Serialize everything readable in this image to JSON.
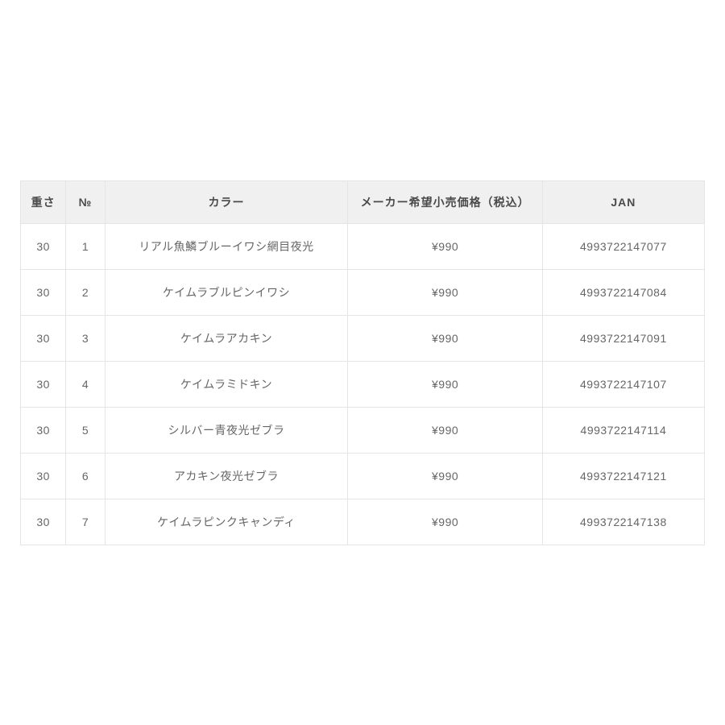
{
  "table": {
    "columns": [
      {
        "key": "weight",
        "label": "重さ",
        "class": "col-weight"
      },
      {
        "key": "no",
        "label": "№",
        "class": "col-no"
      },
      {
        "key": "color",
        "label": "カラー",
        "class": "col-color"
      },
      {
        "key": "price",
        "label": "メーカー希望小売価格（税込）",
        "class": "col-price"
      },
      {
        "key": "jan",
        "label": "JAN",
        "class": "col-jan"
      }
    ],
    "rows": [
      {
        "weight": "30",
        "no": "1",
        "color": "リアル魚鱗ブルーイワシ網目夜光",
        "price": "¥990",
        "jan": "4993722147077"
      },
      {
        "weight": "30",
        "no": "2",
        "color": "ケイムラブルピンイワシ",
        "price": "¥990",
        "jan": "4993722147084"
      },
      {
        "weight": "30",
        "no": "3",
        "color": "ケイムラアカキン",
        "price": "¥990",
        "jan": "4993722147091"
      },
      {
        "weight": "30",
        "no": "4",
        "color": "ケイムラミドキン",
        "price": "¥990",
        "jan": "4993722147107"
      },
      {
        "weight": "30",
        "no": "5",
        "color": "シルバー青夜光ゼブラ",
        "price": "¥990",
        "jan": "4993722147114"
      },
      {
        "weight": "30",
        "no": "6",
        "color": "アカキン夜光ゼブラ",
        "price": "¥990",
        "jan": "4993722147121"
      },
      {
        "weight": "30",
        "no": "7",
        "color": "ケイムラピンクキャンディ",
        "price": "¥990",
        "jan": "4993722147138"
      }
    ],
    "styling": {
      "header_bg": "#f0f0f0",
      "header_text_color": "#4a4a4a",
      "cell_text_color": "#666666",
      "border_color": "#e5e5e5",
      "background_color": "#ffffff",
      "font_size": 14,
      "header_font_weight": 700,
      "cell_padding_y": 18,
      "header_padding_y": 16
    }
  }
}
